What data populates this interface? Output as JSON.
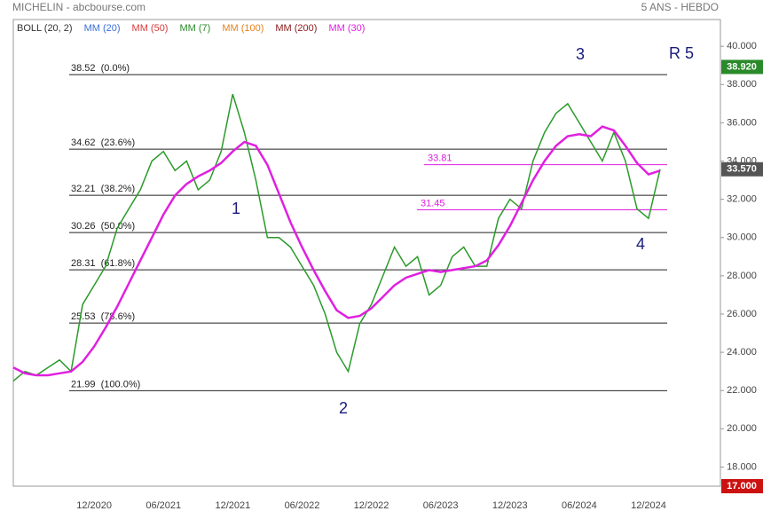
{
  "chart_data": {
    "type": "line",
    "title": "MICHELIN - abcbourse.com",
    "subtitle": "5 ANS - HEBDO",
    "indicators": [
      {
        "name": "BOLL (20, 2)",
        "color": "#333333"
      },
      {
        "name": "MM (20)",
        "color": "#3a6fd8"
      },
      {
        "name": "MM (50)",
        "color": "#d83a3a"
      },
      {
        "name": "MM (7)",
        "color": "#2a8a2a"
      },
      {
        "name": "MM (100)",
        "color": "#e8801a"
      },
      {
        "name": "MM (200)",
        "color": "#8b1a1a"
      },
      {
        "name": "MM (30)",
        "color": "#e020e0"
      }
    ],
    "categories": [
      null,
      null,
      null,
      null,
      null,
      null,
      null,
      "12/2020",
      null,
      null,
      null,
      null,
      null,
      "06/2021",
      null,
      null,
      null,
      null,
      null,
      "12/2021",
      null,
      null,
      null,
      null,
      null,
      "06/2022",
      null,
      null,
      null,
      null,
      null,
      "12/2022",
      null,
      null,
      null,
      null,
      null,
      "06/2023",
      null,
      null,
      null,
      null,
      null,
      "12/2023",
      null,
      null,
      null,
      null,
      null,
      "06/2024",
      null,
      null,
      null,
      null,
      null,
      "12/2024",
      null
    ],
    "series": [
      {
        "name": "MICHELIN",
        "color": "#2a9a2a",
        "values": [
          22.5,
          23.0,
          22.8,
          23.2,
          23.6,
          23.0,
          26.5,
          27.5,
          28.5,
          30.5,
          31.5,
          32.5,
          34.0,
          34.5,
          33.5,
          34.0,
          32.5,
          33.0,
          34.5,
          37.5,
          35.5,
          33.0,
          30.0,
          30.0,
          29.5,
          28.5,
          27.5,
          26.0,
          24.0,
          23.0,
          25.5,
          26.5,
          28.0,
          29.5,
          28.5,
          29.0,
          27.0,
          27.5,
          29.0,
          29.5,
          28.5,
          28.5,
          31.0,
          32.0,
          31.5,
          34.0,
          35.5,
          36.5,
          37.0,
          36.0,
          35.0,
          34.0,
          35.5,
          34.0,
          31.5,
          31.0,
          33.57
        ]
      },
      {
        "name": "MM (30)",
        "color": "#e020e0",
        "values": [
          23.2,
          22.9,
          22.8,
          22.8,
          22.9,
          23.0,
          23.5,
          24.3,
          25.3,
          26.4,
          27.6,
          28.8,
          30.0,
          31.2,
          32.2,
          32.8,
          33.2,
          33.5,
          33.9,
          34.5,
          35.0,
          34.8,
          33.8,
          32.3,
          30.8,
          29.5,
          28.3,
          27.2,
          26.2,
          25.8,
          25.9,
          26.3,
          26.9,
          27.5,
          27.9,
          28.1,
          28.3,
          28.2,
          28.3,
          28.4,
          28.5,
          28.8,
          29.6,
          30.6,
          31.8,
          33.0,
          34.0,
          34.8,
          35.3,
          35.4,
          35.3,
          35.8,
          35.6,
          34.8,
          33.9,
          33.3,
          33.5
        ]
      }
    ],
    "ylim": [
      17,
      41.4
    ],
    "yticks": [
      {
        "value": 18,
        "label": "18.000"
      },
      {
        "value": 20,
        "label": "20.000"
      },
      {
        "value": 22,
        "label": "22.000"
      },
      {
        "value": 24,
        "label": "24.000"
      },
      {
        "value": 26,
        "label": "26.000"
      },
      {
        "value": 28,
        "label": "28.000"
      },
      {
        "value": 30,
        "label": "30.000"
      },
      {
        "value": 32,
        "label": "32.000"
      },
      {
        "value": 34,
        "label": "34.000"
      },
      {
        "value": 36,
        "label": "36.000"
      },
      {
        "value": 38,
        "label": "38.000"
      },
      {
        "value": 40,
        "label": "40.000"
      }
    ],
    "price_tags": [
      {
        "value": 38.92,
        "label": "38.920",
        "color": "#2a8a2a"
      },
      {
        "value": 33.57,
        "label": "33.570",
        "color": "#555555"
      },
      {
        "value": 17,
        "label": "17.000",
        "color": "#cc1111"
      }
    ],
    "fib_levels": [
      {
        "value": 38.52,
        "label": "38.52  (0.0%)"
      },
      {
        "value": 34.62,
        "label": "34.62  (23.6%)"
      },
      {
        "value": 32.21,
        "label": "32.21  (38.2%)"
      },
      {
        "value": 30.26,
        "label": "30.26  (50.0%)"
      },
      {
        "value": 28.31,
        "label": "28.31  (61.8%)"
      },
      {
        "value": 25.53,
        "label": "25.53  (78.6%)"
      },
      {
        "value": 21.99,
        "label": "21.99  (100.0%)"
      }
    ],
    "levels": [
      {
        "value": 33.81,
        "label": "33.81"
      },
      {
        "value": 31.45,
        "label": "31.45"
      }
    ],
    "annotations": [
      "1",
      "2",
      "3",
      "4",
      "R 5"
    ]
  }
}
